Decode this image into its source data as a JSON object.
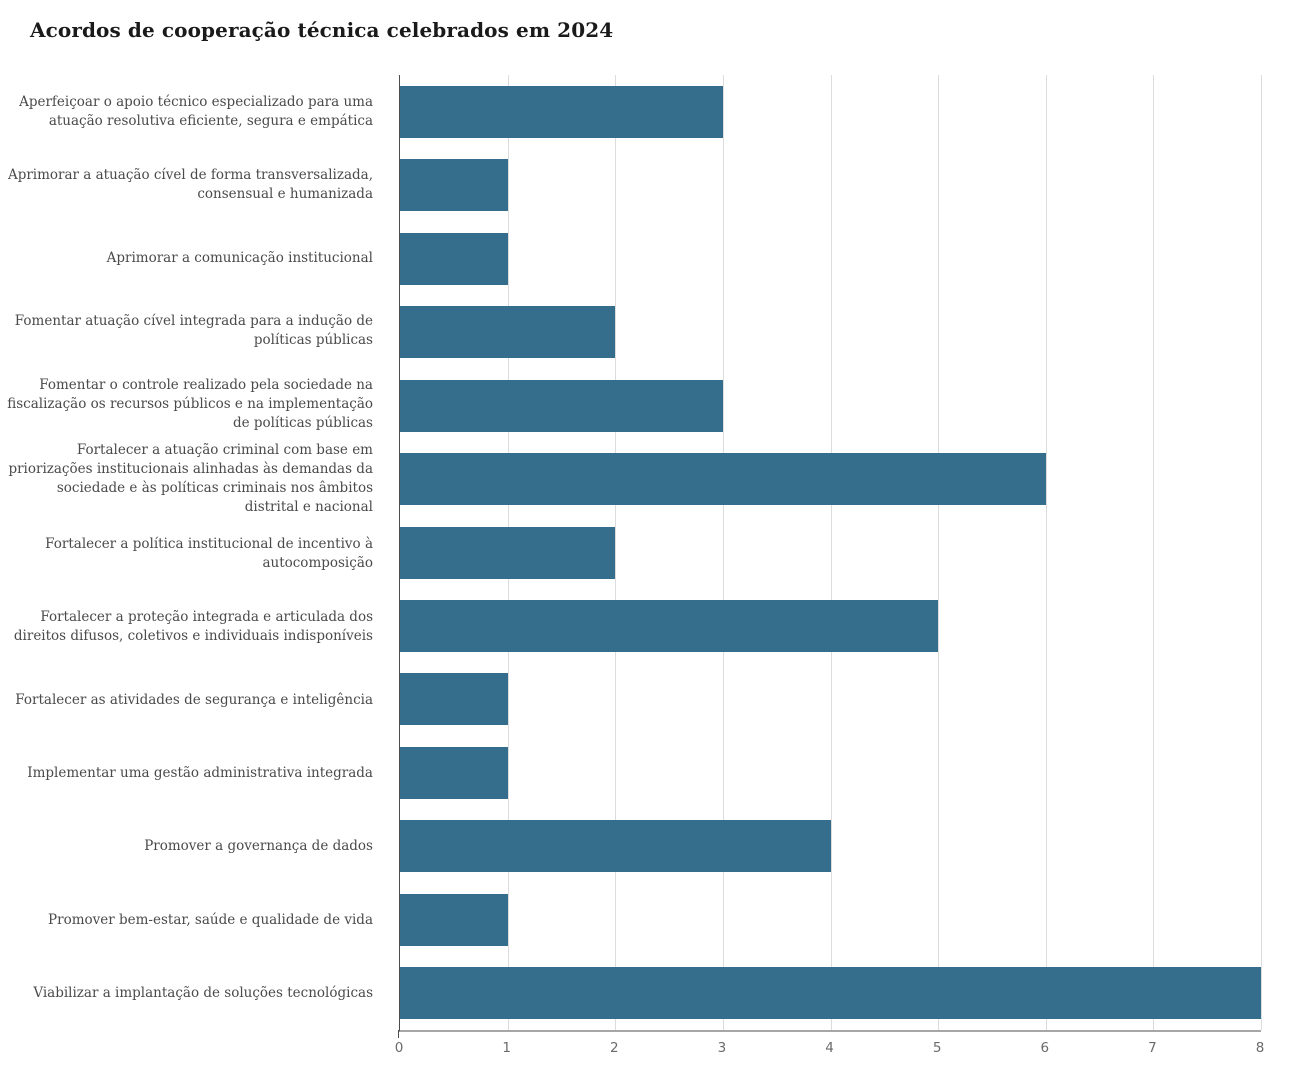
{
  "chart_data": {
    "type": "bar",
    "orientation": "horizontal",
    "title": "Acordos de cooperação técnica celebrados em 2024",
    "categories": [
      "Aperfeiçoar o apoio técnico especializado para uma atuação resolutiva eficiente, segura e empática",
      "Aprimorar a atuação cível de forma transversalizada, consensual e humanizada",
      "Aprimorar a comunicação institucional",
      "Fomentar atuação cível integrada para a indução de políticas públicas",
      "Fomentar o controle realizado pela sociedade na fiscalização os recursos públicos e na implementação de políticas públicas",
      "Fortalecer a atuação criminal com base em priorizações institucionais alinhadas às demandas da sociedade e às políticas criminais nos âmbitos distrital e nacional",
      "Fortalecer a política institucional de incentivo à autocomposição",
      "Fortalecer a proteção integrada e articulada dos direitos difusos, coletivos e individuais indisponíveis",
      "Fortalecer as atividades de segurança e inteligência",
      "Implementar uma gestão administrativa integrada",
      "Promover a governança de dados",
      "Promover bem-estar, saúde e qualidade de vida",
      "Viabilizar a implantação de soluções tecnológicas"
    ],
    "values": [
      3,
      1,
      1,
      2,
      3,
      6,
      2,
      5,
      1,
      1,
      4,
      1,
      8
    ],
    "xlabel": "",
    "ylabel": "",
    "xlim": [
      0,
      8
    ],
    "x_ticks": [
      0,
      1,
      2,
      3,
      4,
      5,
      6,
      7,
      8
    ],
    "grid": true,
    "legend": "none",
    "colors": {
      "bar": "#356d8d",
      "gridline": "#dcdcdc",
      "axis_line": "#a6a6a6",
      "y_axis_line": "#4d4d4d",
      "label_text": "#4a4a4a",
      "tick_text": "#6b6b6b",
      "title_text": "#1a1a1a",
      "background": "#ffffff"
    }
  }
}
